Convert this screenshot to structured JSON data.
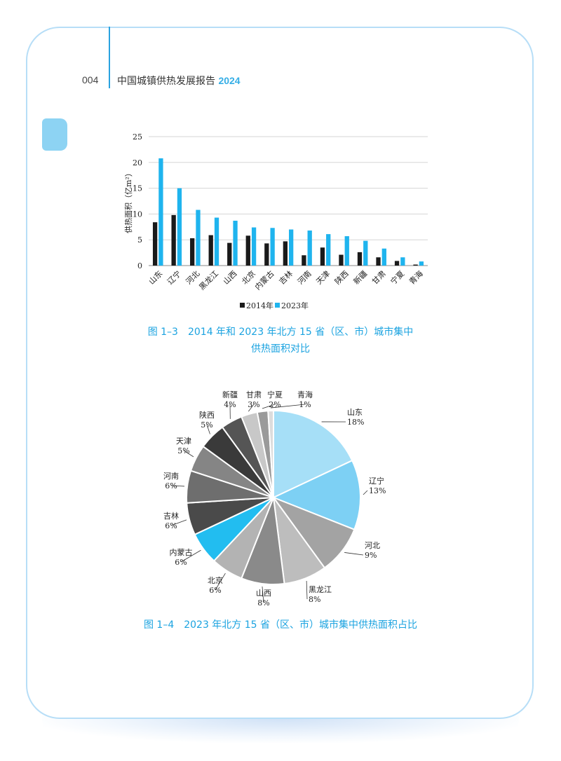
{
  "header": {
    "page_number": "004",
    "title": "中国城镇供热发展报告",
    "year": "2024"
  },
  "colors": {
    "series_2014": "#1a1a1a",
    "series_2023": "#1fb4ee",
    "accent": "#1ba3e0"
  },
  "captions": {
    "fig_1_3_line1": "图 1–3　2014 年和 2023 年北方 15 省（区、市）城市集中",
    "fig_1_3_line2": "供热面积对比",
    "fig_1_4": "图 1–4　2023 年北方 15 省（区、市）城市集中供热面积占比"
  },
  "chart_data": [
    {
      "type": "bar",
      "ylabel": "供热面积（亿m²）",
      "ylim": [
        0,
        25
      ],
      "yticks": [
        0,
        5,
        10,
        15,
        20,
        25
      ],
      "grid": true,
      "legend_position": "bottom",
      "categories": [
        "山东",
        "辽宁",
        "河北",
        "黑龙江",
        "山西",
        "北京",
        "内蒙古",
        "吉林",
        "河南",
        "天津",
        "陕西",
        "新疆",
        "甘肃",
        "宁夏",
        "青海"
      ],
      "series": [
        {
          "name": "2014年",
          "color": "#1a1a1a",
          "values": [
            8.4,
            9.8,
            5.3,
            5.9,
            4.4,
            5.8,
            4.3,
            4.7,
            2.0,
            3.5,
            2.1,
            2.6,
            1.6,
            0.9,
            0.2
          ]
        },
        {
          "name": "2023年",
          "color": "#1fb4ee",
          "values": [
            20.8,
            15.0,
            10.8,
            9.3,
            8.7,
            7.4,
            7.3,
            7.0,
            6.8,
            6.1,
            5.7,
            4.8,
            3.3,
            1.6,
            0.8
          ]
        }
      ]
    },
    {
      "type": "pie",
      "slices": [
        {
          "label": "山东",
          "pct_text": "18%",
          "value": 18,
          "color": "#a6dff7"
        },
        {
          "label": "辽宁",
          "pct_text": "13%",
          "value": 13,
          "color": "#7dd0f4"
        },
        {
          "label": "河北",
          "pct_text": "9%",
          "value": 9,
          "color": "#a3a3a3"
        },
        {
          "label": "黑龙江",
          "pct_text": "8%",
          "value": 8,
          "color": "#bdbdbd"
        },
        {
          "label": "山西",
          "pct_text": "8%",
          "value": 8,
          "color": "#8a8a8a"
        },
        {
          "label": "北京",
          "pct_text": "6%",
          "value": 6,
          "color": "#b3b3b3"
        },
        {
          "label": "内蒙古",
          "pct_text": "6%",
          "value": 6,
          "color": "#22bdf0"
        },
        {
          "label": "吉林",
          "pct_text": "6%",
          "value": 6,
          "color": "#4a4a4a"
        },
        {
          "label": "河南",
          "pct_text": "6%",
          "value": 6,
          "color": "#6e6e6e"
        },
        {
          "label": "天津",
          "pct_text": "5%",
          "value": 5,
          "color": "#858585"
        },
        {
          "label": "陕西",
          "pct_text": "5%",
          "value": 5,
          "color": "#3a3a3a"
        },
        {
          "label": "新疆",
          "pct_text": "4%",
          "value": 4,
          "color": "#555555"
        },
        {
          "label": "甘肃",
          "pct_text": "3%",
          "value": 3,
          "color": "#c8c8c8"
        },
        {
          "label": "宁夏",
          "pct_text": "2%",
          "value": 2,
          "color": "#9a9a9a"
        },
        {
          "label": "青海",
          "pct_text": "1%",
          "value": 1,
          "color": "#dcdcdc"
        }
      ]
    }
  ]
}
